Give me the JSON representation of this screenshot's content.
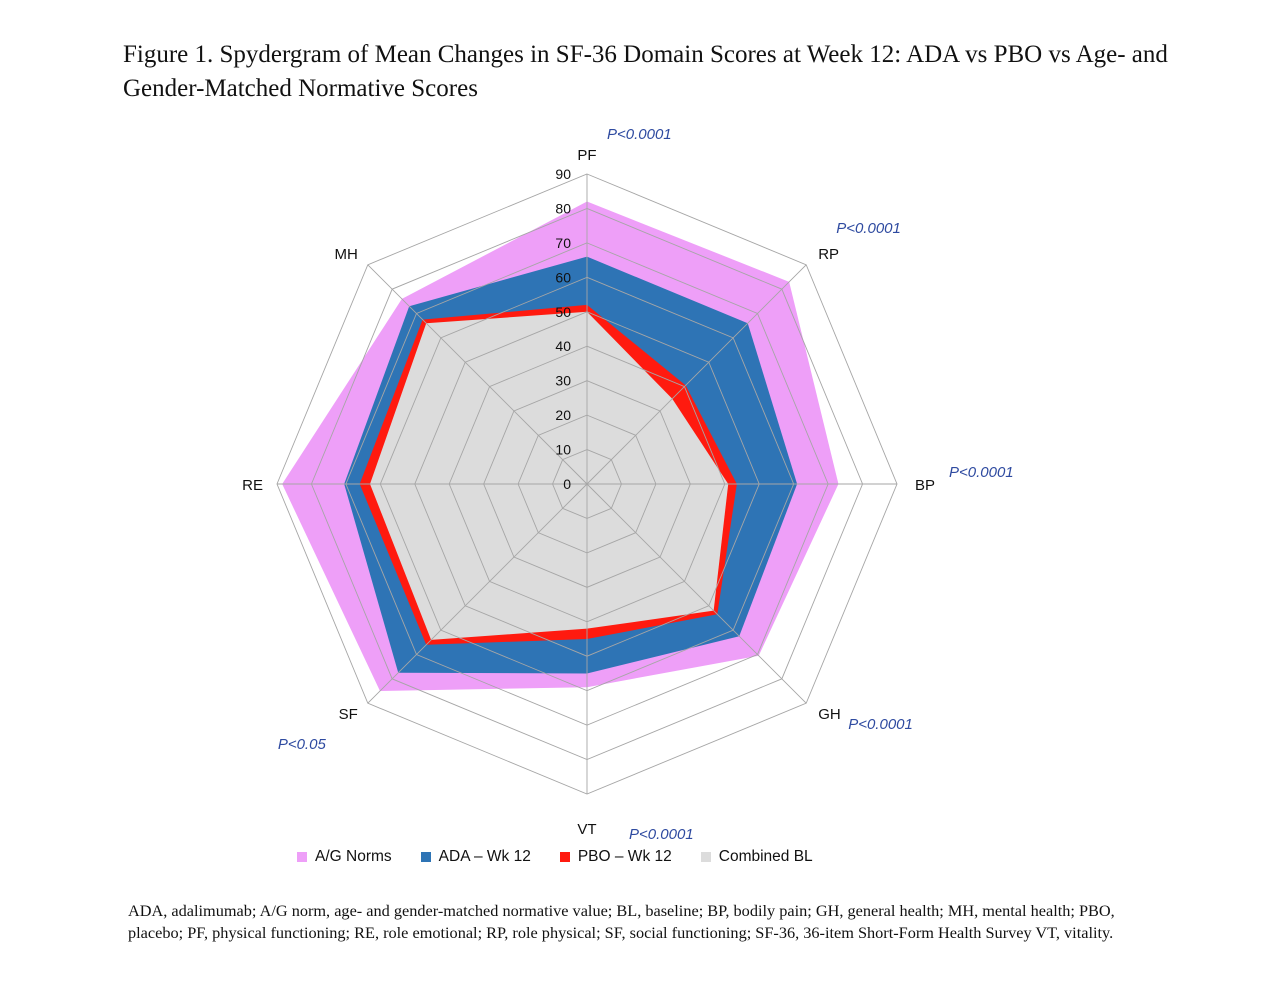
{
  "title": "Figure 1. Spydergram of Mean Changes in SF-36 Domain Scores at Week 12: ADA vs PBO vs Age- and Gender-Matched Normative Scores",
  "footnote": "ADA, adalimumab; A/G norm, age- and gender-matched normative value; BL, baseline; BP, bodily pain; GH, general health; MH, mental health; PBO, placebo; PF, physical functioning; RE, role emotional; RP, role physical; SF, social functioning; SF-36, 36-item Short-Form Health Survey VT, vitality.",
  "chart_data": {
    "type": "radar",
    "title": "Spydergram of Mean Changes in SF-36 Domain Scores at Week 12: ADA vs PBO vs Age- and Gender-Matched Normative Scores",
    "categories": [
      "PF",
      "RP",
      "BP",
      "GH",
      "VT",
      "SF",
      "RE",
      "MH"
    ],
    "p_values": [
      "P<0.0001",
      "P<0.0001",
      "P<0.0001",
      "P<0.0001",
      "P<0.0001",
      "P<0.05",
      "",
      ""
    ],
    "radial_range": [
      0,
      90
    ],
    "radial_ticks": [
      0,
      10,
      20,
      30,
      40,
      50,
      60,
      70,
      80,
      90
    ],
    "grid": true,
    "legend_position": "bottom",
    "series": [
      {
        "name": "A/G Norms",
        "color": "#ee9ff8",
        "values": [
          82,
          83,
          73,
          70.5,
          59,
          85,
          88.5,
          76
        ]
      },
      {
        "name": "ADA – Wk 12",
        "color": "#2e74b5",
        "values": [
          66,
          66,
          61,
          62.5,
          55,
          77.5,
          70.5,
          73
        ]
      },
      {
        "name": "PBO – Wk 12",
        "color": "#ff1a0f",
        "values": [
          52,
          40.5,
          43.5,
          53.5,
          45,
          66,
          66,
          67.5
        ]
      },
      {
        "name": "Combined BL",
        "color": "#dcdcdc",
        "values": [
          50,
          35,
          41,
          52,
          42,
          64,
          63,
          66
        ]
      }
    ]
  }
}
